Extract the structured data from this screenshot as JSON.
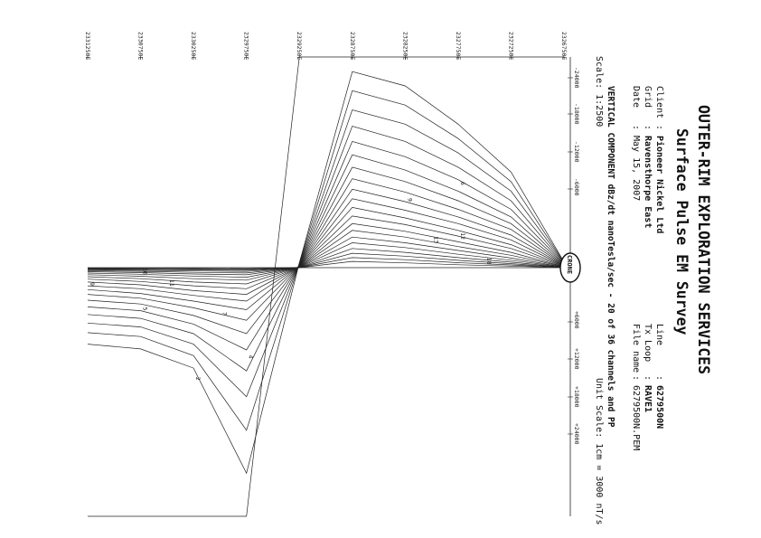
{
  "header": {
    "title": "OUTER-RIM EXPLORATION SERVICES",
    "subtitle": "Surface Pulse EM Survey",
    "client_label": "Client",
    "client_value": "Pioneer Nickel Ltd",
    "grid_label": "Grid",
    "grid_value": "Ravensthorpe East",
    "date_label": "Date",
    "date_value": "May 15, 2007",
    "line_label": "Line",
    "line_value": "6279500N",
    "txloop_label": "Tx Loop",
    "txloop_value": "RAVE1",
    "filename_label": "File name",
    "filename_value": "6279500N.PEM",
    "component": "VERTICAL COMPONENT dBz/dt nanoTesla/sec - 20 of 36 channels and PP",
    "scale": "Scale: 1:2500",
    "unit_scale": "Unit Scale: 1cm = 3000 nT/s",
    "logo_text": "CRONE"
  },
  "chart_data": {
    "type": "line",
    "orientation": "rotated 90 degrees clockwise",
    "xlabel": "Station (Easting)",
    "ylabel": "nT/s",
    "ylim": [
      -24000,
      24000
    ],
    "ytick_labels": [
      "-24000",
      "-18000",
      "-12000",
      "-6000",
      "+6000",
      "+12000",
      "+18000",
      "+24000"
    ],
    "xtick_labels": [
      "2326750E",
      "2327250E",
      "2327750E",
      "2328250E",
      "2328750E",
      "2329250E",
      "2329750E",
      "2330250E",
      "2330750E",
      "2331250E"
    ],
    "x": [
      2326750,
      2327250,
      2327750,
      2328250,
      2328750,
      2329250,
      2329750,
      2330250,
      2330750,
      2331250
    ],
    "series": [
      {
        "name": "PP",
        "values": [
          -24000,
          -32000,
          -40000,
          -48000,
          -56000,
          -60000,
          26000,
          26000,
          26000,
          26000
        ]
      },
      {
        "name": "1",
        "values": [
          -600,
          -10000,
          -15000,
          -19000,
          -20500,
          -500,
          21500,
          10500,
          8500,
          8000
        ]
      },
      {
        "name": "2",
        "values": [
          -550,
          -9000,
          -13500,
          -17000,
          -18500,
          -450,
          17000,
          9200,
          7200,
          6800
        ]
      },
      {
        "name": "3",
        "values": [
          -500,
          -8000,
          -12000,
          -15000,
          -16500,
          -400,
          13500,
          8000,
          6200,
          5800
        ]
      },
      {
        "name": "4",
        "values": [
          -450,
          -7000,
          -10500,
          -13200,
          -14800,
          -350,
          10800,
          6900,
          5300,
          4900
        ]
      },
      {
        "name": "5",
        "values": [
          -400,
          -6100,
          -9200,
          -11600,
          -13200,
          -300,
          8600,
          5900,
          4500,
          4100
        ]
      },
      {
        "name": "6",
        "values": [
          -350,
          -5300,
          -8000,
          -10200,
          -11800,
          -260,
          6900,
          5000,
          3800,
          3400
        ]
      },
      {
        "name": "7",
        "values": [
          -300,
          -4600,
          -7000,
          -9000,
          -10500,
          -220,
          5500,
          4200,
          3200,
          2800
        ]
      },
      {
        "name": "8",
        "values": [
          -260,
          -4000,
          -6100,
          -7900,
          -9300,
          -190,
          4400,
          3500,
          2700,
          2300
        ]
      },
      {
        "name": "9",
        "values": [
          -220,
          -3400,
          -5300,
          -6900,
          -8200,
          -160,
          3500,
          2900,
          2200,
          1900
        ]
      },
      {
        "name": "10",
        "values": [
          -190,
          -2900,
          -4600,
          -6000,
          -7200,
          -130,
          2800,
          2400,
          1800,
          1500
        ]
      },
      {
        "name": "11",
        "values": [
          -160,
          -2400,
          -3900,
          -5200,
          -6300,
          -110,
          2200,
          1900,
          1450,
          1200
        ]
      },
      {
        "name": "12",
        "values": [
          -130,
          -2000,
          -3300,
          -4500,
          -5400,
          -90,
          1700,
          1500,
          1150,
          950
        ]
      },
      {
        "name": "13",
        "values": [
          -110,
          -1600,
          -2700,
          -3800,
          -4600,
          -70,
          1300,
          1150,
          900,
          740
        ]
      },
      {
        "name": "14",
        "values": [
          -90,
          -1300,
          -2200,
          -3200,
          -3900,
          -55,
          1000,
          880,
          690,
          570
        ]
      },
      {
        "name": "15",
        "values": [
          -70,
          -1000,
          -1800,
          -2600,
          -3200,
          -40,
          750,
          660,
          520,
          430
        ]
      },
      {
        "name": "16",
        "values": [
          -55,
          -780,
          -1400,
          -2100,
          -2600,
          -30,
          560,
          490,
          390,
          320
        ]
      },
      {
        "name": "17",
        "values": [
          -40,
          -580,
          -1050,
          -1600,
          -2000,
          -20,
          400,
          350,
          280,
          230
        ]
      },
      {
        "name": "18",
        "values": [
          -30,
          -420,
          -770,
          -1200,
          -1500,
          -12,
          280,
          240,
          190,
          160
        ]
      },
      {
        "name": "19",
        "values": [
          -20,
          -280,
          -520,
          -830,
          -1050,
          -6,
          180,
          150,
          120,
          100
        ]
      },
      {
        "name": "20",
        "values": [
          -12,
          -160,
          -300,
          -500,
          -650,
          -2,
          100,
          85,
          70,
          60
        ]
      }
    ],
    "series_labels": [
      {
        "text": "2",
        "x": 2330250,
        "y": 11800
      },
      {
        "text": "4",
        "x": 2329750,
        "y": 9500
      },
      {
        "text": "5",
        "x": 2330750,
        "y": 4500
      },
      {
        "text": "6",
        "x": 2327750,
        "y": -8600
      },
      {
        "text": "7",
        "x": 2330000,
        "y": 5000
      },
      {
        "text": "9",
        "x": 2331250,
        "y": 1900
      },
      {
        "text": "9",
        "x": 2328250,
        "y": -6900
      },
      {
        "text": "11",
        "x": 2330500,
        "y": 1600
      },
      {
        "text": "12",
        "x": 2327750,
        "y": -3300
      },
      {
        "text": "13",
        "x": 2328000,
        "y": -2900
      },
      {
        "text": "16",
        "x": 2330750,
        "y": 390
      },
      {
        "text": "18",
        "x": 2327500,
        "y": -700
      },
      {
        "text": "20",
        "x": 2326750,
        "y": -12
      },
      {
        "text": "15",
        "x": 2326750,
        "y": -70
      }
    ],
    "grid": false,
    "legend": "none"
  }
}
